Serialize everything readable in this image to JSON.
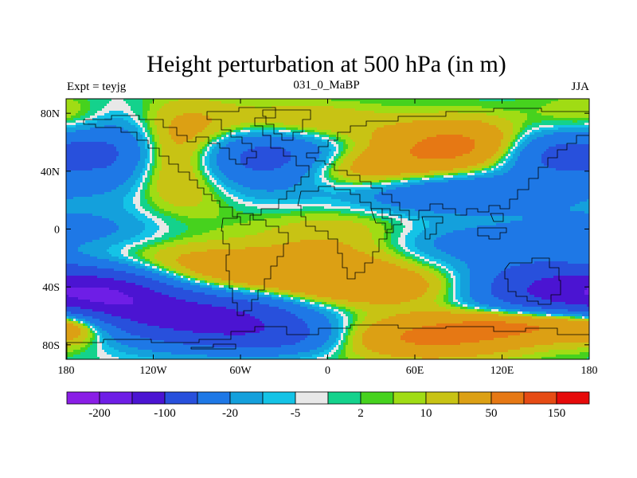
{
  "chart_data": {
    "type": "heatmap",
    "title": "Height perturbation at 500 hPa (in m)",
    "left_string": "Expt = teyjg",
    "center_string": "031_0_MaBP",
    "right_string": "JJA",
    "x_ticks": [
      {
        "value": -180,
        "label": "180"
      },
      {
        "value": -120,
        "label": "120W"
      },
      {
        "value": -60,
        "label": "60W"
      },
      {
        "value": 0,
        "label": "0"
      },
      {
        "value": 60,
        "label": "60E"
      },
      {
        "value": 120,
        "label": "120E"
      },
      {
        "value": 180,
        "label": "180"
      }
    ],
    "y_ticks": [
      {
        "value": 80,
        "label": "80N"
      },
      {
        "value": 40,
        "label": "40N"
      },
      {
        "value": 0,
        "label": "0"
      },
      {
        "value": -40,
        "label": "40S"
      },
      {
        "value": -80,
        "label": "80S"
      }
    ],
    "xlim": [
      -180,
      180
    ],
    "ylim": [
      -90,
      90
    ],
    "colorbar": {
      "colors": [
        "#8a1ee6",
        "#6e1ee6",
        "#4b14d2",
        "#2850dc",
        "#1e78e6",
        "#14a0dc",
        "#14c3e6",
        "#e8e8e8",
        "#14d28c",
        "#46d21e",
        "#a0dc14",
        "#c8c314",
        "#dca014",
        "#e67814",
        "#e64b14",
        "#e60a0a"
      ],
      "labels": [
        {
          "boundary": 1,
          "text": "-200"
        },
        {
          "boundary": 3,
          "text": "-100"
        },
        {
          "boundary": 5,
          "text": "-20"
        },
        {
          "boundary": 7,
          "text": "-5"
        },
        {
          "boundary": 9,
          "text": "2"
        },
        {
          "boundary": 11,
          "text": "10"
        },
        {
          "boundary": 13,
          "text": "50"
        },
        {
          "boundary": 15,
          "text": "150"
        }
      ]
    },
    "field_features": [
      {
        "lon": -150,
        "lat": -45,
        "lon_w": 35,
        "lat_w": 14,
        "amp": -130
      },
      {
        "lon": -80,
        "lat": -62,
        "lon_w": 45,
        "lat_w": 13,
        "amp": -120
      },
      {
        "lon": 150,
        "lat": -40,
        "lon_w": 40,
        "lat_w": 14,
        "amp": -110
      },
      {
        "lon": -175,
        "lat": -65,
        "lon_w": 20,
        "lat_w": 10,
        "amp": 45
      },
      {
        "lon": -110,
        "lat": -28,
        "lon_w": 80,
        "lat_w": 12,
        "amp": 40
      },
      {
        "lon": 30,
        "lat": -40,
        "lon_w": 70,
        "lat_w": 10,
        "amp": 35
      },
      {
        "lon": 70,
        "lat": -75,
        "lon_w": 45,
        "lat_w": 10,
        "amp": 55
      },
      {
        "lon": 140,
        "lat": -65,
        "lon_w": 40,
        "lat_w": 8,
        "amp": 60
      },
      {
        "lon": -30,
        "lat": -75,
        "lon_w": 30,
        "lat_w": 8,
        "amp": -40
      },
      {
        "lon": 10,
        "lat": -10,
        "lon_w": 40,
        "lat_w": 22,
        "amp": 20
      },
      {
        "lon": 100,
        "lat": -10,
        "lon_w": 45,
        "lat_w": 10,
        "amp": -30
      },
      {
        "lon": -170,
        "lat": 0,
        "lon_w": 40,
        "lat_w": 10,
        "amp": -25
      },
      {
        "lon": -100,
        "lat": 50,
        "lon_w": 30,
        "lat_w": 22,
        "amp": 55
      },
      {
        "lon": -145,
        "lat": 55,
        "lon_w": 22,
        "lat_w": 20,
        "amp": -55
      },
      {
        "lon": -45,
        "lat": 48,
        "lon_w": 40,
        "lat_w": 15,
        "amp": -90
      },
      {
        "lon": 15,
        "lat": 40,
        "lon_w": 45,
        "lat_w": 12,
        "amp": 50
      },
      {
        "lon": 90,
        "lat": 58,
        "lon_w": 35,
        "lat_w": 12,
        "amp": 60
      },
      {
        "lon": 80,
        "lat": 25,
        "lon_w": 60,
        "lat_w": 10,
        "amp": -55
      },
      {
        "lon": 160,
        "lat": 52,
        "lon_w": 30,
        "lat_w": 12,
        "amp": -70
      },
      {
        "lon": -20,
        "lat": 72,
        "lon_w": 40,
        "lat_w": 10,
        "amp": 30
      },
      {
        "lon": -170,
        "lat": 75,
        "lon_w": 30,
        "lat_w": 12,
        "amp": 20
      }
    ]
  }
}
